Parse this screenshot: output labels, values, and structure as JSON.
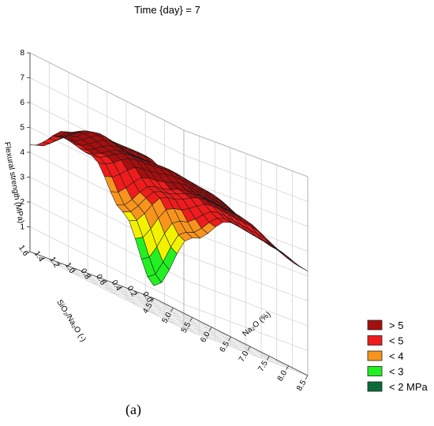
{
  "chart_data": {
    "type": "surface3d",
    "title": "Time {day} = 7",
    "xlabel": "Na₂O (%)",
    "ylabel": "SiO₂/Na₂O (-)",
    "zlabel": "Flexural strength (MPa)",
    "x_ticks": [
      "4.5",
      "5.0",
      "5.5",
      "6.0",
      "6.5",
      "7.0",
      "7.5",
      "8.0",
      "8.5"
    ],
    "y_ticks": [
      "0.0",
      "0.2",
      "0.4",
      "0.6",
      "0.8",
      "1.0",
      "1.2",
      "1.4",
      "1.6"
    ],
    "z_ticks": [
      "1",
      "2",
      "3",
      "4",
      "5",
      "6",
      "7",
      "8"
    ],
    "xlim": [
      4.5,
      8.5
    ],
    "ylim": [
      0.0,
      1.6
    ],
    "zlim": [
      0,
      8
    ],
    "surface_x": [
      4.5,
      5.5,
      6.5,
      7.5,
      8.5
    ],
    "surface_y": [
      0.0,
      0.4,
      0.8,
      1.2,
      1.6
    ],
    "surface_z": [
      [
        0.5,
        3.2,
        4.6,
        4.5,
        4.2
      ],
      [
        3.0,
        4.6,
        5.2,
        5.2,
        4.6
      ],
      [
        4.8,
        5.6,
        5.8,
        5.7,
        5.0
      ],
      [
        5.1,
        6.0,
        5.5,
        5.6,
        5.1
      ],
      [
        4.3,
        5.6,
        6.1,
        6.2,
        4.4
      ]
    ],
    "legend": {
      "position": "bottom-right",
      "entries": [
        {
          "label": "> 5",
          "color": "#a50f0f"
        },
        {
          "label": "< 5",
          "color": "#ee1c1c"
        },
        {
          "label": "< 4",
          "color": "#f7941d"
        },
        {
          "label": "< 3",
          "color": "#22f022"
        },
        {
          "label": "< 2 MPa",
          "color": "#0b6b3a"
        }
      ]
    },
    "grid": true
  },
  "caption": "(a)"
}
